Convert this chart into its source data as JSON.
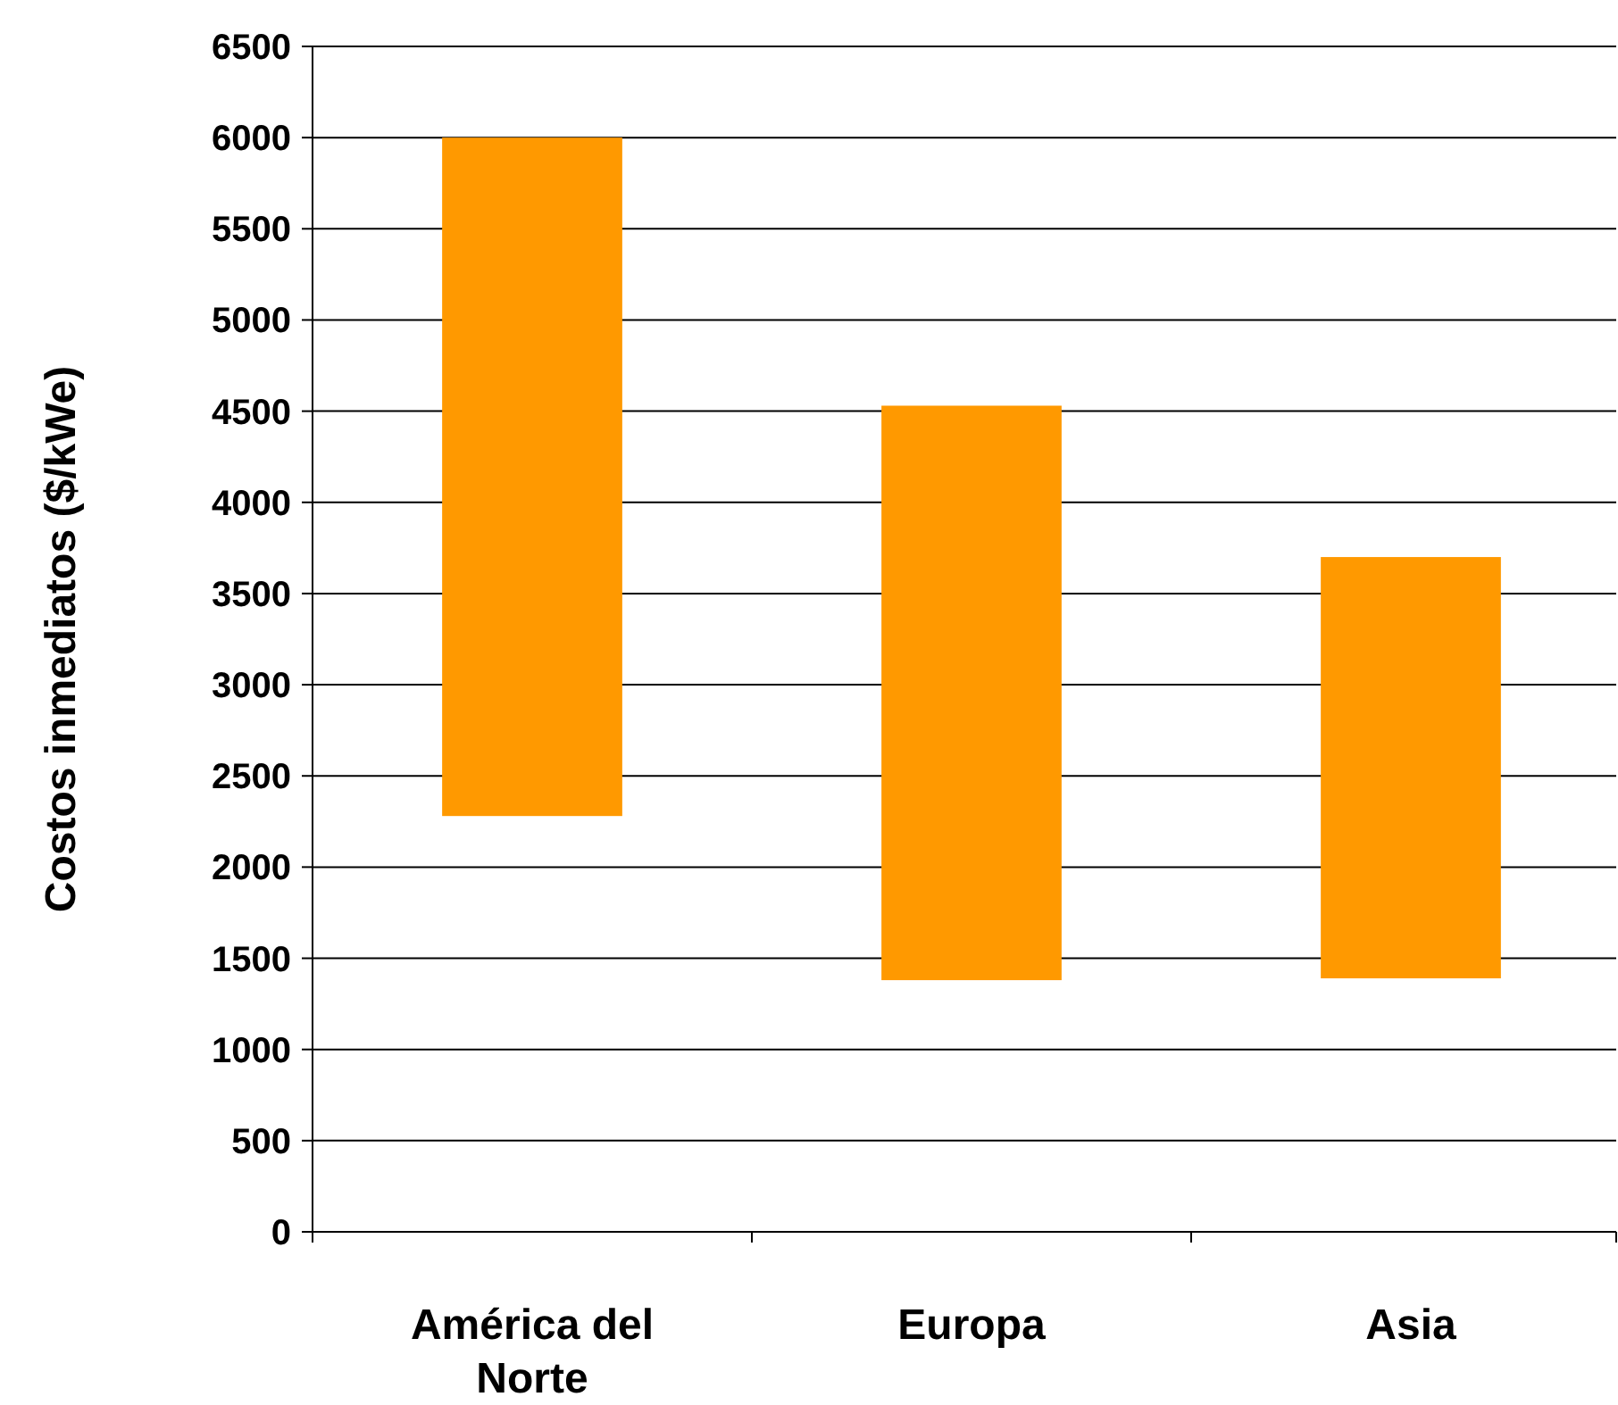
{
  "chart_data": {
    "type": "bar",
    "ylabel": "Costos inmediatos ($/kWe)",
    "categories": [
      "América del Norte",
      "Europa",
      "Asia"
    ],
    "base": [
      2280,
      1380,
      1390
    ],
    "values": [
      3720,
      3150,
      2310
    ],
    "color": "#ff9900",
    "ylim": [
      0,
      6500
    ],
    "yticks": [
      0,
      500,
      1000,
      1500,
      2000,
      2500,
      3000,
      3500,
      4000,
      4500,
      5000,
      5500,
      6000,
      6500
    ],
    "grid": "y"
  }
}
